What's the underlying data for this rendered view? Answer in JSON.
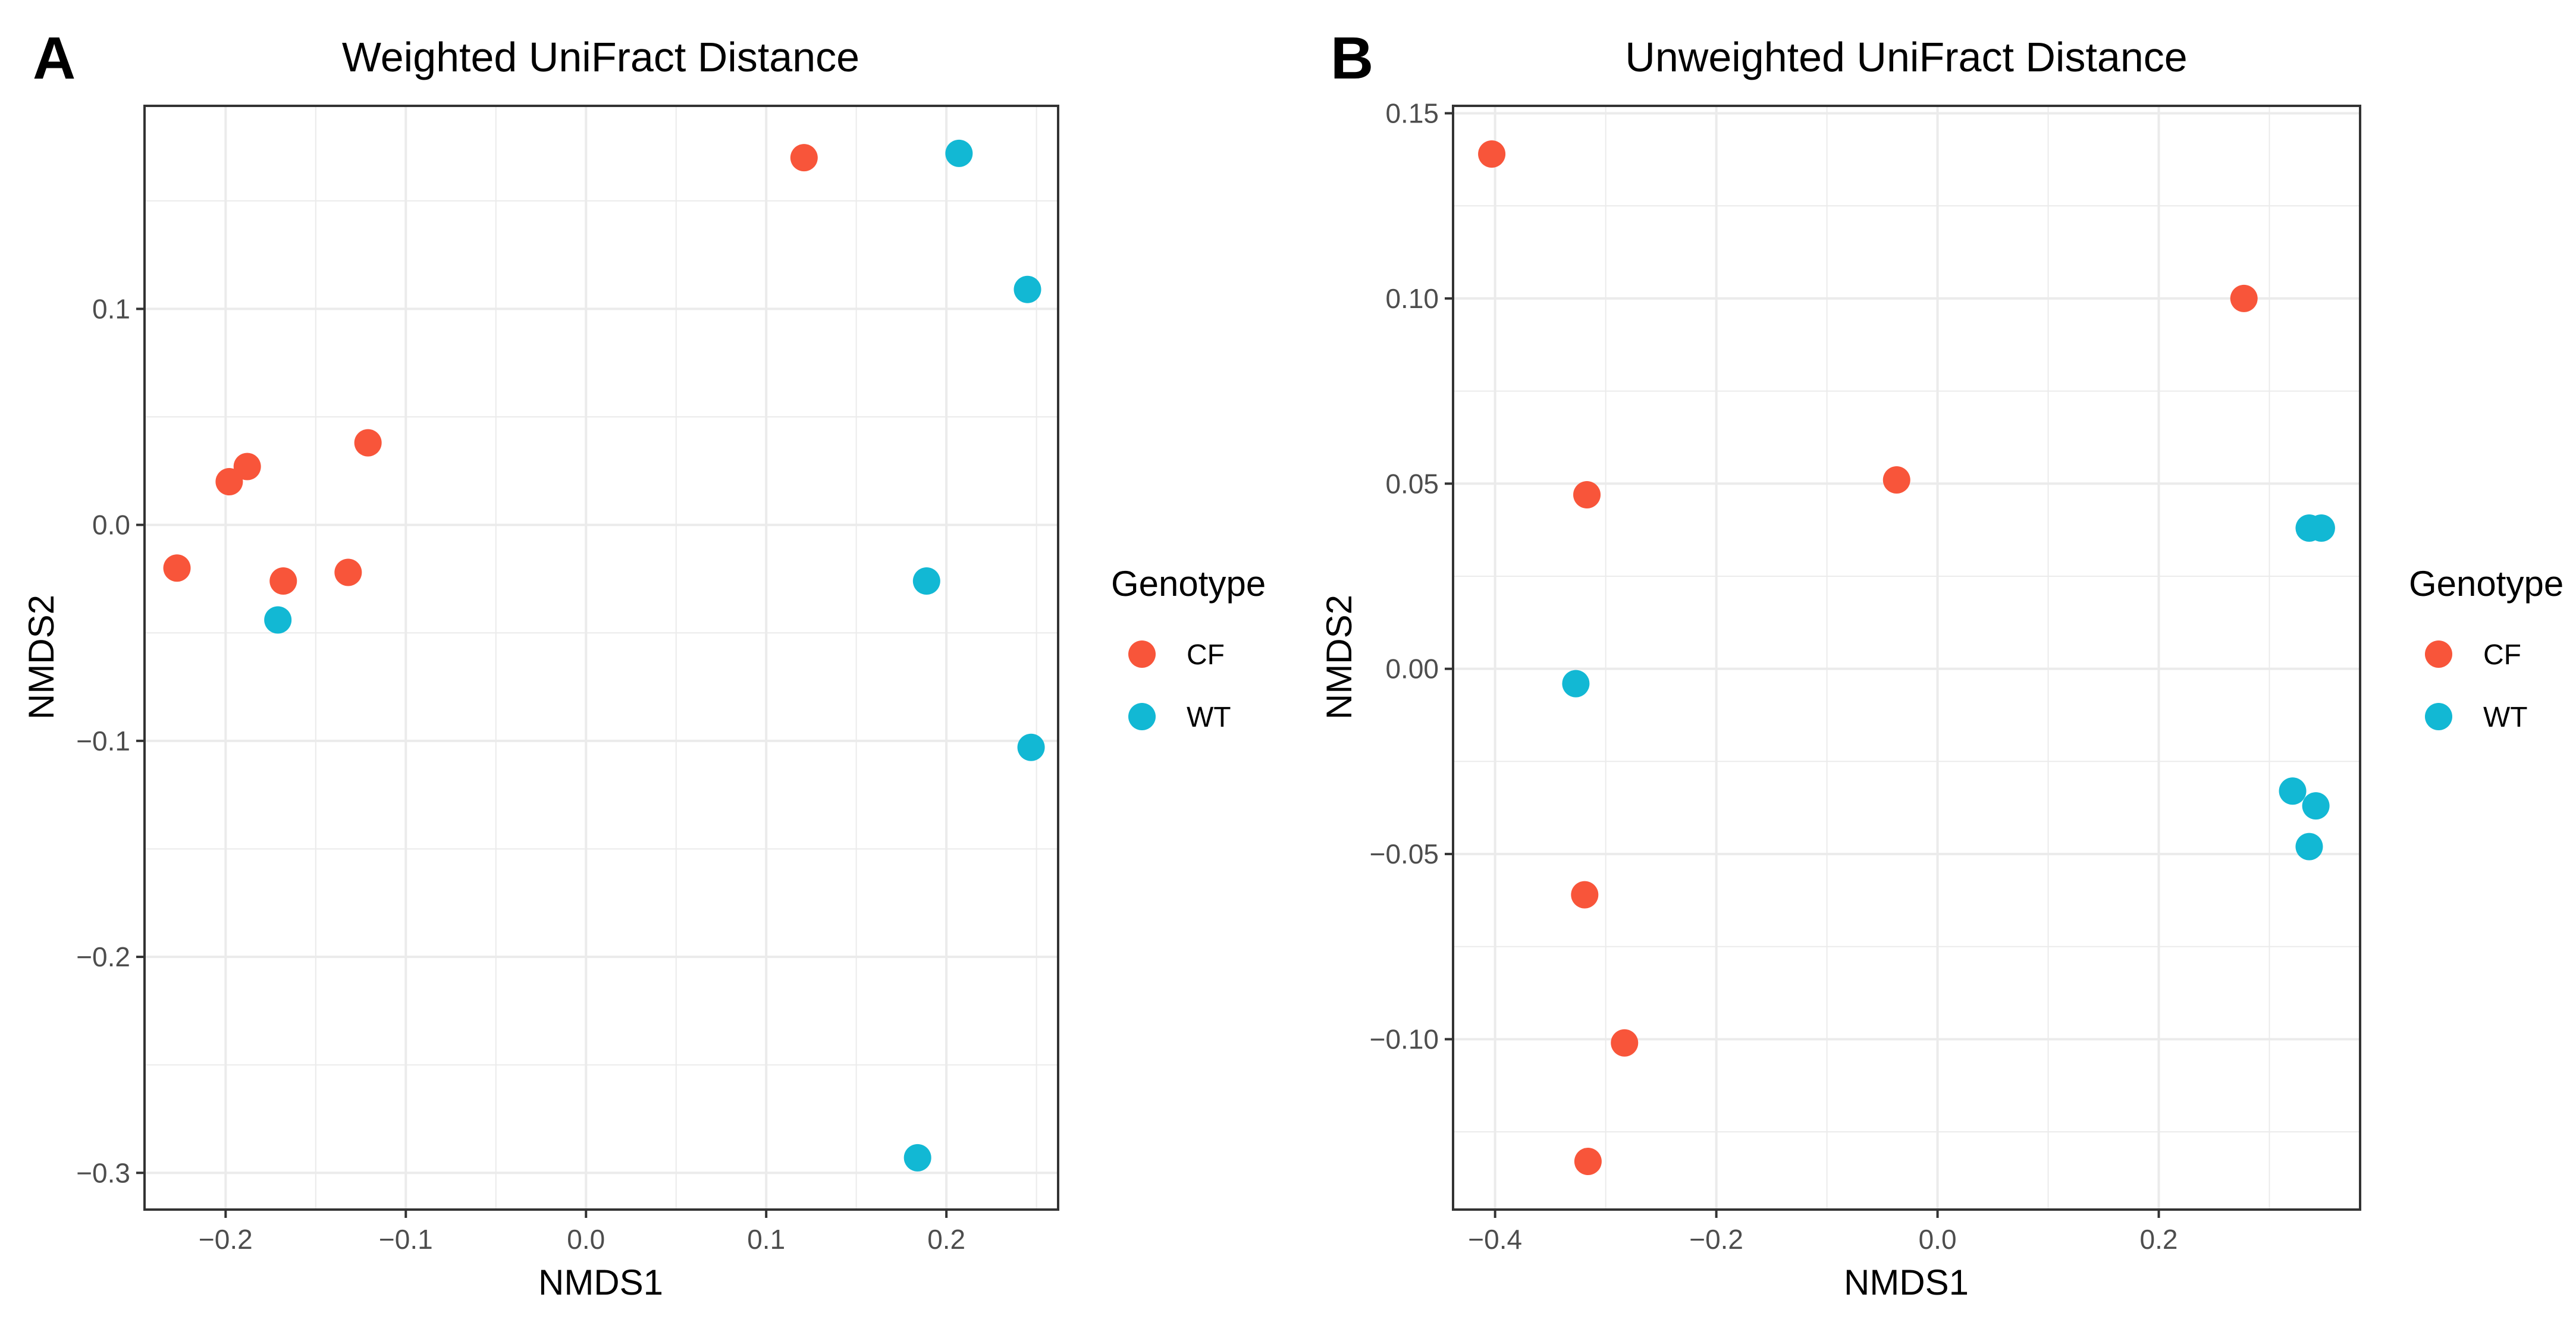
{
  "colors": {
    "CF": "#f8553a",
    "WT": "#12b8d4",
    "grid": "#ebebeb",
    "panel_border": "#333333"
  },
  "chart_data": [
    {
      "type": "scatter",
      "panel_label": "A",
      "title": "Weighted UniFract Distance",
      "xlabel": "NMDS1",
      "ylabel": "NMDS2",
      "xlim": [
        -0.245,
        0.262
      ],
      "ylim": [
        -0.317,
        0.194
      ],
      "xticks": [
        -0.2,
        -0.1,
        0.0,
        0.1,
        0.2
      ],
      "xtick_labels": [
        "−0.2",
        "−0.1",
        "0.0",
        "0.1",
        "0.2"
      ],
      "yticks": [
        -0.3,
        -0.2,
        -0.1,
        0.0,
        0.1
      ],
      "ytick_labels": [
        "−0.3",
        "−0.2",
        "−0.1",
        "0.0",
        "0.1"
      ],
      "legend": {
        "title": "Genotype",
        "position": "right",
        "entries": [
          {
            "label": "CF",
            "group": "CF"
          },
          {
            "label": "WT",
            "group": "WT"
          }
        ]
      },
      "series": [
        {
          "name": "CF",
          "points": [
            [
              -0.227,
              -0.02
            ],
            [
              -0.198,
              0.02
            ],
            [
              -0.188,
              0.027
            ],
            [
              -0.168,
              -0.026
            ],
            [
              -0.132,
              -0.022
            ],
            [
              -0.121,
              0.038
            ],
            [
              0.121,
              0.17
            ]
          ]
        },
        {
          "name": "WT",
          "points": [
            [
              -0.171,
              -0.044
            ],
            [
              0.207,
              0.172
            ],
            [
              0.245,
              0.109
            ],
            [
              0.189,
              -0.026
            ],
            [
              0.247,
              -0.103
            ],
            [
              0.184,
              -0.293
            ]
          ]
        }
      ]
    },
    {
      "type": "scatter",
      "panel_label": "B",
      "title": "Unweighted UniFract Distance",
      "xlabel": "NMDS1",
      "ylabel": "NMDS2",
      "xlim": [
        -0.438,
        0.382
      ],
      "ylim": [
        -0.146,
        0.152
      ],
      "xticks": [
        -0.4,
        -0.2,
        0.0,
        0.2
      ],
      "xtick_labels": [
        "−0.4",
        "−0.2",
        "0.0",
        "0.2"
      ],
      "yticks": [
        -0.1,
        -0.05,
        0.0,
        0.05,
        0.1,
        0.15
      ],
      "ytick_labels": [
        "−0.10",
        "−0.05",
        "0.00",
        "0.05",
        "0.10",
        "0.15"
      ],
      "legend": {
        "title": "Genotype",
        "position": "right",
        "entries": [
          {
            "label": "CF",
            "group": "CF"
          },
          {
            "label": "WT",
            "group": "WT"
          }
        ]
      },
      "series": [
        {
          "name": "CF",
          "points": [
            [
              -0.403,
              0.139
            ],
            [
              0.277,
              0.1
            ],
            [
              -0.317,
              0.047
            ],
            [
              -0.037,
              0.051
            ],
            [
              -0.319,
              -0.061
            ],
            [
              -0.283,
              -0.101
            ],
            [
              -0.316,
              -0.133
            ]
          ]
        },
        {
          "name": "WT",
          "points": [
            [
              -0.327,
              -0.004
            ],
            [
              0.336,
              0.038
            ],
            [
              0.347,
              0.038
            ],
            [
              0.321,
              -0.033
            ],
            [
              0.342,
              -0.037
            ],
            [
              0.336,
              -0.048
            ]
          ]
        }
      ]
    }
  ]
}
